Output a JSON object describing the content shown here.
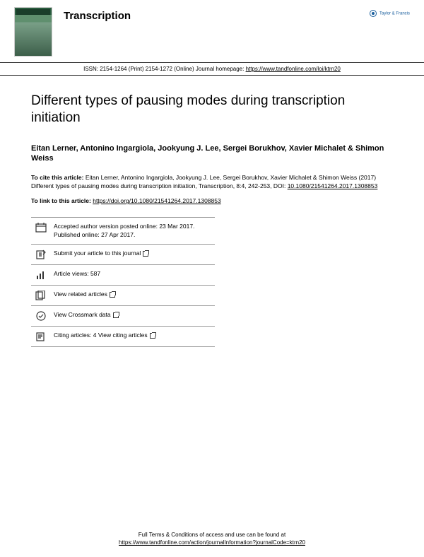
{
  "header": {
    "journal_name": "Transcription",
    "publisher": "Taylor & Francis",
    "publisher_sub": "Taylor & Francis Group"
  },
  "issn": {
    "text": "ISSN: 2154-1264 (Print) 2154-1272 (Online) Journal homepage: ",
    "link": "https://www.tandfonline.com/loi/ktrn20"
  },
  "article": {
    "title": "Different types of pausing modes during transcription initiation",
    "authors": "Eitan Lerner, Antonino Ingargiola, Jookyung J. Lee, Sergei Borukhov, Xavier Michalet & Shimon Weiss",
    "cite_label": "To cite this article:",
    "cite_text": " Eitan Lerner, Antonino Ingargiola, Jookyung J. Lee, Sergei Borukhov, Xavier Michalet & Shimon Weiss (2017) Different types of pausing modes during transcription initiation, Transcription, 8:4, 242-253, DOI: ",
    "cite_doi": "10.1080/21541264.2017.1308853",
    "link_label": "To link to this article: ",
    "link_url": "https://doi.org/10.1080/21541264.2017.1308853"
  },
  "actions": [
    {
      "icon": "calendar",
      "text": "Accepted author version posted online: 23 Mar 2017.\nPublished online: 27 Apr 2017."
    },
    {
      "icon": "submit",
      "text": "Submit your article to this journal",
      "ext": true
    },
    {
      "icon": "views",
      "text": "Article views: 587"
    },
    {
      "icon": "related",
      "text": "View related articles",
      "ext": true
    },
    {
      "icon": "crossmark",
      "text": "View Crossmark data",
      "ext": true
    },
    {
      "icon": "citing",
      "text": "Citing articles: 4 View citing articles",
      "ext": true
    }
  ],
  "footer": {
    "line1": "Full Terms & Conditions of access and use can be found at",
    "link": "https://www.tandfonline.com/action/journalInformation?journalCode=ktrn20"
  }
}
